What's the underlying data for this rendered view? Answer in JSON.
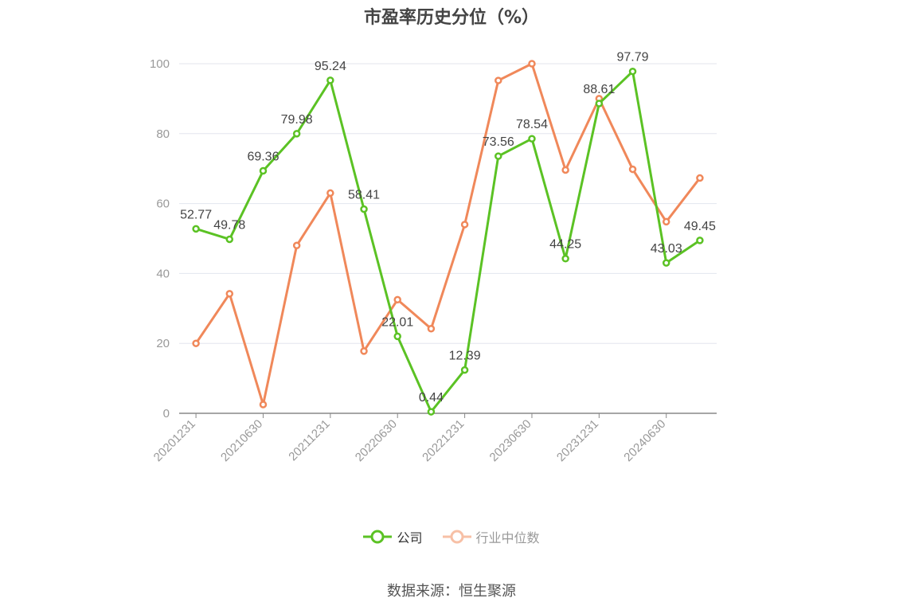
{
  "chart_data": {
    "type": "line",
    "title": "市盈率历史分位（%）",
    "categories": [
      "20201231",
      "20210331",
      "20210630",
      "20210930",
      "20211231",
      "20220331",
      "20220630",
      "20220930",
      "20221231",
      "20230331",
      "20230630",
      "20230930",
      "20231231",
      "20240331",
      "20240630",
      "20240930"
    ],
    "x_tick_labels": [
      "20201231",
      "20210630",
      "20211231",
      "20220630",
      "20221231",
      "20230630",
      "20231231",
      "20240630"
    ],
    "ylim": [
      0,
      100
    ],
    "y_ticks": [
      0,
      20,
      40,
      60,
      80,
      100
    ],
    "grid": true,
    "legend_position": "bottom",
    "series": [
      {
        "name": "公司",
        "color": "#5bc224",
        "values": [
          52.77,
          49.78,
          69.36,
          79.98,
          95.24,
          58.41,
          22.01,
          0.44,
          12.39,
          73.56,
          78.54,
          44.25,
          88.61,
          97.79,
          43.03,
          49.45
        ],
        "labels": [
          "52.77",
          "49.78",
          "69.36",
          "79.98",
          "95.24",
          "58.41",
          "22.01",
          "0.44",
          "12.39",
          "73.56",
          "78.54",
          "44.25",
          "88.61",
          "97.79",
          "43.03",
          "49.45"
        ]
      },
      {
        "name": "行业中位数",
        "color": "#f0885a",
        "values": [
          20.0,
          34.2,
          2.5,
          48.0,
          63.0,
          17.8,
          32.5,
          24.2,
          54.0,
          95.2,
          100.0,
          69.6,
          90.0,
          69.8,
          54.8,
          67.3
        ]
      }
    ]
  },
  "source": "数据来源：恒生聚源"
}
